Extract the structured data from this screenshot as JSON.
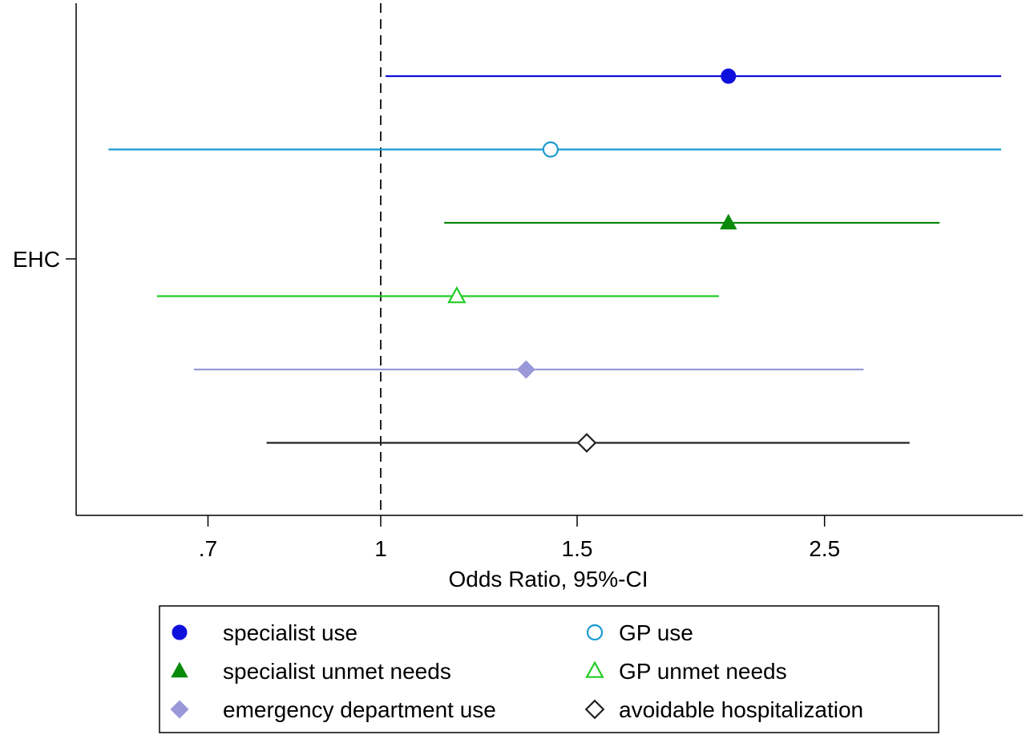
{
  "chart_data": {
    "type": "forest",
    "x_scale": "log",
    "title": "",
    "xlabel": "Odds Ratio, 95%-CI",
    "ylabel": "",
    "y_categories": [
      "EHC"
    ],
    "x_ticks": [
      {
        "value": 0.7,
        "label": ".7"
      },
      {
        "value": 1,
        "label": "1"
      },
      {
        "value": 1.5,
        "label": "1.5"
      },
      {
        "value": 2.5,
        "label": "2.5"
      }
    ],
    "reference_line": 1,
    "xlim": [
      0.56,
      3.65
    ],
    "grid": false,
    "legend_position": "bottom",
    "series": [
      {
        "name": "specialist use",
        "estimate": 2.05,
        "ci": [
          1.01,
          3.6
        ],
        "color": "#1010dd",
        "marker": "circle",
        "filled": true
      },
      {
        "name": "GP use",
        "estimate": 1.42,
        "ci": [
          0.57,
          3.6
        ],
        "color": "#1a9ad0",
        "marker": "circle",
        "filled": false
      },
      {
        "name": "specialist unmet needs",
        "estimate": 2.05,
        "ci": [
          1.14,
          3.17
        ],
        "color": "#0a8a0a",
        "marker": "triangle",
        "filled": true
      },
      {
        "name": "GP unmet needs",
        "estimate": 1.17,
        "ci": [
          0.63,
          2.01
        ],
        "color": "#22cc22",
        "marker": "triangle",
        "filled": false
      },
      {
        "name": "emergency department use",
        "estimate": 1.35,
        "ci": [
          0.68,
          2.71
        ],
        "color": "#9a98d8",
        "marker": "diamond",
        "filled": true
      },
      {
        "name": "avoidable hospitalization",
        "estimate": 1.53,
        "ci": [
          0.79,
          2.98
        ],
        "color": "#222222",
        "marker": "diamond",
        "filled": false
      }
    ]
  }
}
